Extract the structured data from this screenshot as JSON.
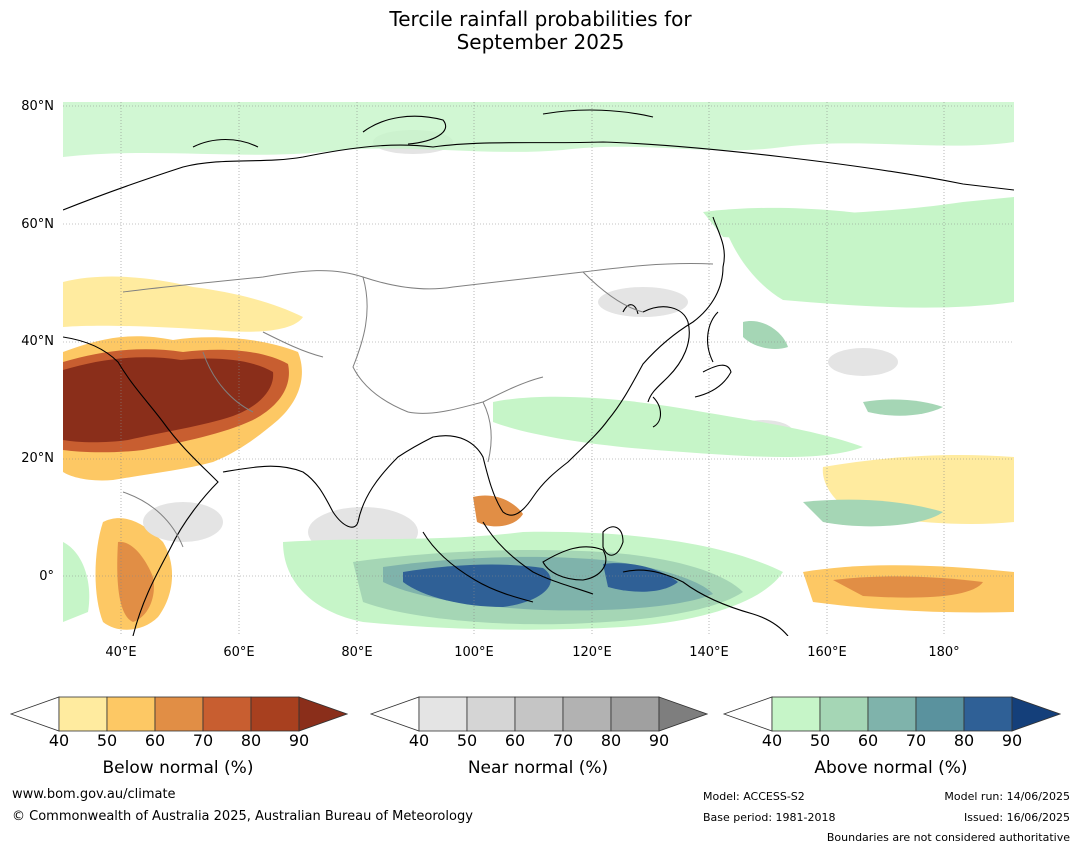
{
  "title": {
    "line1": "Tercile rainfall probabilities for",
    "line2": "September 2025"
  },
  "map": {
    "lat_labels": [
      "80°N",
      "60°N",
      "40°N",
      "20°N",
      "0°"
    ],
    "lon_labels": [
      "40°E",
      "60°E",
      "80°E",
      "100°E",
      "120°E",
      "140°E",
      "160°E",
      "180°"
    ]
  },
  "legends": [
    {
      "label": "Below normal (%)",
      "ticks": [
        "40",
        "50",
        "60",
        "70",
        "80",
        "90"
      ],
      "colors": [
        "#ffffff",
        "#ffeb9f",
        "#fdc864",
        "#e18e45",
        "#c85e30",
        "#a8401f",
        "#8a2e1a"
      ]
    },
    {
      "label": "Near normal (%)",
      "ticks": [
        "40",
        "50",
        "60",
        "70",
        "80",
        "90"
      ],
      "colors": [
        "#ffffff",
        "#e4e4e4",
        "#d5d5d5",
        "#c5c5c5",
        "#b2b2b2",
        "#a0a0a0",
        "#7e7e7e"
      ]
    },
    {
      "label": "Above normal (%)",
      "ticks": [
        "40",
        "50",
        "60",
        "70",
        "80",
        "90"
      ],
      "colors": [
        "#ffffff",
        "#c6f5c8",
        "#a5d6b5",
        "#7fb3ab",
        "#5a929e",
        "#2f6096",
        "#143f7a"
      ]
    }
  ],
  "footer": {
    "website": "www.bom.gov.au/climate",
    "copyright": "© Commonwealth of Australia 2025, Australian Bureau of Meteorology",
    "model": "Model: ACCESS-S2",
    "base_period": "Base period: 1981-2018",
    "model_run": "Model run: 14/06/2025",
    "issued": "Issued: 16/06/2025",
    "disclaimer": "Boundaries are not considered authoritative"
  }
}
